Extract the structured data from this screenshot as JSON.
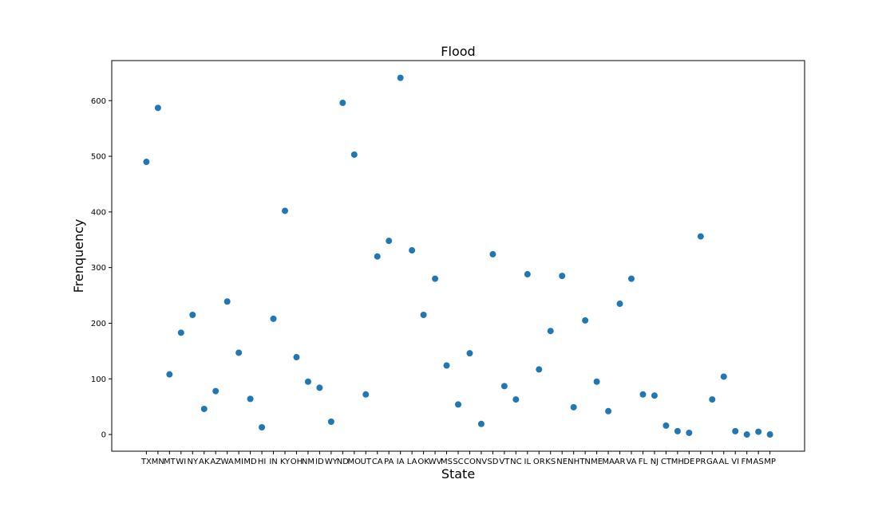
{
  "chart_data": {
    "type": "scatter",
    "title": "Flood",
    "xlabel": "State",
    "ylabel": "Frenquency",
    "categories": [
      "TX",
      "MN",
      "MT",
      "WI",
      "NY",
      "AK",
      "AZ",
      "WA",
      "MI",
      "MD",
      "HI",
      "IN",
      "KY",
      "OH",
      "NM",
      "ID",
      "WY",
      "ND",
      "MO",
      "UT",
      "CA",
      "PA",
      "IA",
      "LA",
      "OK",
      "WV",
      "MS",
      "SC",
      "CO",
      "NV",
      "SD",
      "VT",
      "NC",
      "IL",
      "OR",
      "KS",
      "NE",
      "NH",
      "TN",
      "ME",
      "MA",
      "AR",
      "VA",
      "FL",
      "NJ",
      "CT",
      "MH",
      "DE",
      "PR",
      "GA",
      "AL",
      "VI",
      "FM",
      "AS",
      "MP"
    ],
    "values": [
      490,
      587,
      108,
      183,
      215,
      46,
      78,
      239,
      147,
      64,
      13,
      208,
      402,
      139,
      95,
      84,
      23,
      596,
      503,
      72,
      320,
      348,
      641,
      331,
      215,
      280,
      124,
      54,
      146,
      19,
      324,
      87,
      63,
      288,
      117,
      186,
      285,
      49,
      205,
      95,
      42,
      235,
      280,
      72,
      70,
      16,
      6,
      3,
      356,
      63,
      104,
      6,
      0,
      5,
      0
    ],
    "ylim": [
      -30,
      672
    ],
    "yticks": [
      0,
      100,
      200,
      300,
      400,
      500,
      600
    ],
    "grid": false,
    "color": "#1f77b4"
  }
}
